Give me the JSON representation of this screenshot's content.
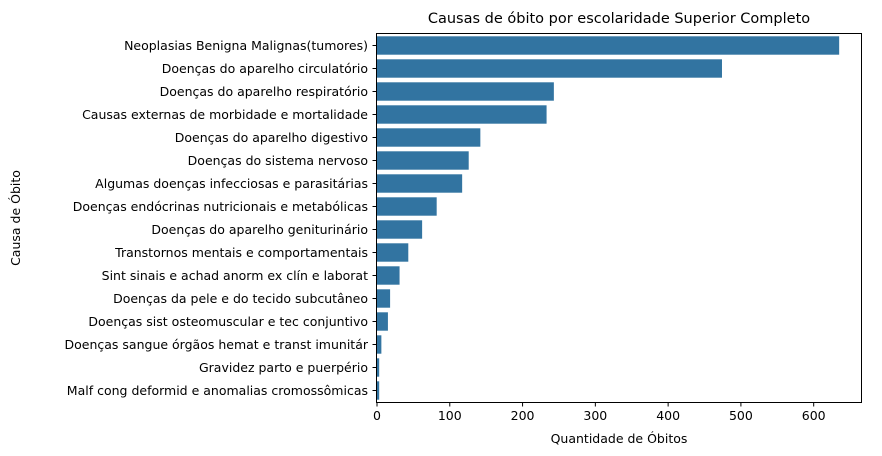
{
  "chart_data": {
    "type": "bar",
    "orientation": "horizontal",
    "title": "Causas de óbito por escolaridade Superior Completo",
    "xlabel": "Quantidade de Óbitos",
    "ylabel": "Causa de Óbito",
    "xlim": [
      0,
      665
    ],
    "xticks": [
      0,
      100,
      200,
      300,
      400,
      500,
      600
    ],
    "grid": false,
    "bar_color": "#3274a1",
    "categories": [
      "Neoplasias Benigna Malignas(tumores)",
      "Doenças do aparelho circulatório",
      "Doenças do aparelho respiratório",
      "Causas externas de morbidade e mortalidade",
      "Doenças do aparelho digestivo",
      "Doenças do sistema nervoso",
      "Algumas doenças infecciosas e parasitárias",
      "Doenças endócrinas nutricionais e metabólicas",
      "Doenças do aparelho geniturinário",
      "Transtornos mentais e comportamentais",
      "Sint sinais e achad anorm ex clín e laborat",
      "Doenças da pele e do tecido subcutâneo",
      "Doenças sist osteomuscular e tec conjuntivo",
      "Doenças sangue órgãos hemat e transt imunitár",
      "Gravidez parto e puerpério",
      "Malf cong deformid e anomalias cromossômicas"
    ],
    "values": [
      635,
      474,
      243,
      233,
      142,
      126,
      117,
      82,
      62,
      43,
      31,
      18,
      15,
      6,
      3,
      3
    ]
  }
}
